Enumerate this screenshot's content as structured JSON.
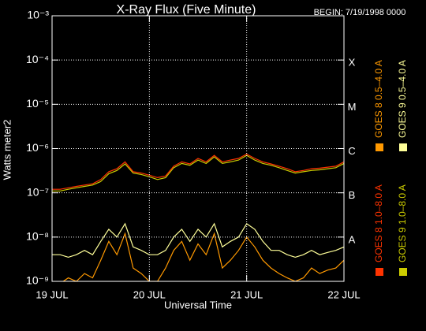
{
  "chart_data": {
    "type": "line",
    "title": "X-Ray Flux (Five Minute)",
    "subtitle": "BEGIN: 7/19/1998 0000",
    "x_label": "Universal Time",
    "y_label": "Watts meter2",
    "log_y": true,
    "grid": true,
    "legend": "right",
    "x": [
      0,
      2,
      4,
      6,
      8,
      10,
      12,
      14,
      16,
      18,
      20,
      22,
      24,
      26,
      28,
      30,
      32,
      34,
      36,
      38,
      40,
      42,
      44,
      46,
      48,
      50,
      52,
      54,
      56,
      58,
      60,
      62,
      64,
      66,
      68,
      70,
      72
    ],
    "xlim": [
      0,
      72
    ],
    "xticks": [
      {
        "value": 0,
        "label": "19 JUL"
      },
      {
        "value": 24,
        "label": "20 JUL"
      },
      {
        "value": 48,
        "label": "21 JUL"
      },
      {
        "value": 72,
        "label": "22 JUL"
      }
    ],
    "ylim": [
      1e-09,
      0.001
    ],
    "yticks": [
      {
        "value": 1e-09,
        "label": "10⁻⁹"
      },
      {
        "value": 1e-08,
        "label": "10⁻⁸"
      },
      {
        "value": 1e-07,
        "label": "10⁻⁷"
      },
      {
        "value": 1e-06,
        "label": "10⁻⁶"
      },
      {
        "value": 1e-05,
        "label": "10⁻⁵"
      },
      {
        "value": 0.0001,
        "label": "10⁻⁴"
      },
      {
        "value": 0.001,
        "label": "10⁻³"
      }
    ],
    "flare_classes": [
      {
        "label": "X",
        "value": 0.0001
      },
      {
        "label": "M",
        "value": 1e-05
      },
      {
        "label": "C",
        "value": 1e-06
      },
      {
        "label": "B",
        "value": 1e-07
      },
      {
        "label": "A",
        "value": 1e-08
      }
    ],
    "series": [
      {
        "name": "GOES 8 1.0–8.0 A",
        "color": "#ff3300",
        "values": [
          1.2e-07,
          1.2e-07,
          1.3e-07,
          1.4e-07,
          1.5e-07,
          1.6e-07,
          2e-07,
          3e-07,
          3.5e-07,
          5e-07,
          3e-07,
          2.8e-07,
          2.5e-07,
          2.2e-07,
          2.4e-07,
          4e-07,
          5e-07,
          4.5e-07,
          6e-07,
          5e-07,
          7e-07,
          5e-07,
          5.5e-07,
          6e-07,
          7.5e-07,
          6e-07,
          5e-07,
          4.5e-07,
          4e-07,
          3.5e-07,
          3e-07,
          3.2e-07,
          3.5e-07,
          3.6e-07,
          3.8e-07,
          4e-07,
          5e-07
        ]
      },
      {
        "name": "GOES 8 0.5–4.0 A",
        "color": "#ff9900",
        "values": [
          8e-10,
          9e-10,
          1.2e-09,
          1e-09,
          1.5e-09,
          1.2e-09,
          3e-09,
          8e-09,
          4e-09,
          1.2e-08,
          2e-09,
          1.5e-09,
          1e-09,
          1e-09,
          2e-09,
          5e-09,
          8e-09,
          3e-09,
          7e-09,
          4e-09,
          1.2e-08,
          2e-09,
          3e-09,
          5e-09,
          1e-08,
          6e-09,
          3e-09,
          2e-09,
          1.5e-09,
          1.2e-09,
          1e-09,
          1.2e-09,
          2e-09,
          1.5e-09,
          1.8e-09,
          2e-09,
          3e-09
        ]
      },
      {
        "name": "GOES 9 1.0–8.0 A",
        "color": "#cccc00",
        "values": [
          1.1e-07,
          1.1e-07,
          1.2e-07,
          1.3e-07,
          1.4e-07,
          1.5e-07,
          1.8e-07,
          2.7e-07,
          3.2e-07,
          4.5e-07,
          2.8e-07,
          2.6e-07,
          2.3e-07,
          2e-07,
          2.2e-07,
          3.7e-07,
          4.6e-07,
          4.2e-07,
          5.5e-07,
          4.6e-07,
          6.5e-07,
          4.6e-07,
          5e-07,
          5.5e-07,
          7e-07,
          5.5e-07,
          4.6e-07,
          4.2e-07,
          3.7e-07,
          3.2e-07,
          2.8e-07,
          3e-07,
          3.2e-07,
          3.3e-07,
          3.5e-07,
          3.7e-07,
          4.6e-07
        ]
      },
      {
        "name": "GOES 9 0.5–4.0 A",
        "color": "#ffff99",
        "values": [
          4e-09,
          4e-09,
          3.5e-09,
          4e-09,
          5e-09,
          4e-09,
          8e-09,
          1.5e-08,
          1e-08,
          2e-08,
          6e-09,
          5e-09,
          4e-09,
          4e-09,
          5e-09,
          1e-08,
          1.5e-08,
          8e-09,
          1.5e-08,
          1e-08,
          2e-08,
          6e-09,
          8e-09,
          1e-08,
          2e-08,
          1.5e-08,
          8e-09,
          5e-09,
          5e-09,
          4e-09,
          3.5e-09,
          4e-09,
          5e-09,
          4e-09,
          4.5e-09,
          5e-09,
          6e-09
        ]
      }
    ]
  }
}
